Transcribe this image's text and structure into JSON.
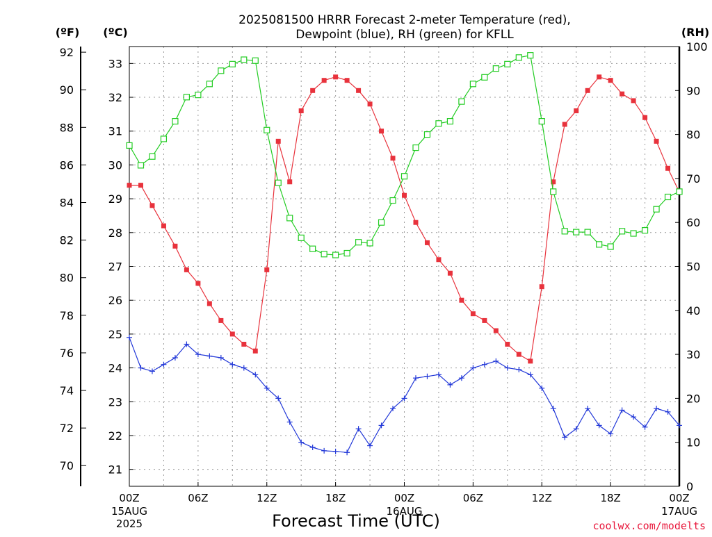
{
  "chart_data": {
    "type": "line",
    "title_line1": "2025081500 HRRR Forecast 2-meter Temperature (red),",
    "title_line2": "Dewpoint (blue), RH (green) for KFLL",
    "left_outer_unit": "(ºF)",
    "left_inner_unit": "(ºC)",
    "right_unit": "(RH)",
    "xlabel": "Forecast Time (UTC)",
    "credit": "coolwx.com/modelts",
    "fahrenheit_ticks": [
      "70",
      "72",
      "74",
      "76",
      "78",
      "80",
      "82",
      "84",
      "86",
      "88",
      "90",
      "92"
    ],
    "celsius_ticks": [
      "21",
      "22",
      "23",
      "24",
      "25",
      "26",
      "27",
      "28",
      "29",
      "30",
      "31",
      "32",
      "33"
    ],
    "rh_ticks": [
      "0",
      "10",
      "20",
      "30",
      "40",
      "50",
      "60",
      "70",
      "80",
      "90",
      "100"
    ],
    "celsius_range": [
      20.5,
      33.5
    ],
    "rh_range": [
      0,
      100
    ],
    "x_range_hours": [
      0,
      48
    ],
    "grid": true,
    "x_ticks": [
      {
        "hour": 0,
        "line1": "00Z",
        "line2": "15AUG",
        "line3": "2025"
      },
      {
        "hour": 6,
        "line1": "06Z",
        "line2": "",
        "line3": ""
      },
      {
        "hour": 12,
        "line1": "12Z",
        "line2": "",
        "line3": ""
      },
      {
        "hour": 18,
        "line1": "18Z",
        "line2": "",
        "line3": ""
      },
      {
        "hour": 24,
        "line1": "00Z",
        "line2": "16AUG",
        "line3": ""
      },
      {
        "hour": 30,
        "line1": "06Z",
        "line2": "",
        "line3": ""
      },
      {
        "hour": 36,
        "line1": "12Z",
        "line2": "",
        "line3": ""
      },
      {
        "hour": 42,
        "line1": "18Z",
        "line2": "",
        "line3": ""
      },
      {
        "hour": 48,
        "line1": "00Z",
        "line2": "17AUG",
        "line3": ""
      }
    ],
    "series": [
      {
        "name": "Temperature (red)",
        "axis": "celsius",
        "color": "#e8323c",
        "marker": "filled-square",
        "values": [
          29.4,
          29.4,
          28.8,
          28.2,
          27.6,
          26.9,
          26.5,
          25.9,
          25.4,
          25.0,
          24.7,
          24.5,
          26.9,
          30.7,
          29.5,
          31.6,
          32.2,
          32.5,
          32.6,
          32.5,
          32.2,
          31.8,
          31.0,
          30.2,
          29.1,
          28.3,
          27.7,
          27.2,
          26.8,
          26.0,
          25.6,
          25.4,
          25.1,
          24.7,
          24.4,
          24.2,
          26.4,
          29.5,
          31.2,
          31.6,
          32.2,
          32.6,
          32.5,
          32.1,
          31.9,
          31.4,
          30.7,
          29.9,
          29.2
        ]
      },
      {
        "name": "Dewpoint (blue)",
        "axis": "celsius",
        "color": "#2238d8",
        "marker": "plus",
        "values": [
          24.9,
          24.0,
          23.9,
          24.1,
          24.3,
          24.7,
          24.4,
          24.35,
          24.3,
          24.1,
          24.0,
          23.8,
          23.4,
          23.1,
          22.4,
          21.8,
          21.65,
          21.55,
          21.53,
          21.5,
          22.2,
          21.7,
          22.3,
          22.8,
          23.1,
          23.7,
          23.75,
          23.8,
          23.5,
          23.7,
          24.0,
          24.1,
          24.2,
          24.0,
          23.95,
          23.8,
          23.4,
          22.8,
          21.95,
          22.2,
          22.8,
          22.3,
          22.05,
          22.75,
          22.55,
          22.25,
          22.8,
          22.7,
          22.3
        ]
      },
      {
        "name": "RH (green)",
        "axis": "rh",
        "color": "#22cc22",
        "marker": "open-square",
        "values": [
          77.5,
          73.0,
          75.0,
          79.0,
          83.0,
          88.5,
          89.0,
          91.5,
          94.5,
          96.0,
          97.0,
          96.8,
          81.0,
          69.0,
          61.0,
          56.5,
          54.0,
          52.8,
          52.6,
          53.0,
          55.5,
          55.3,
          60.0,
          65.0,
          70.5,
          77.0,
          80.0,
          82.5,
          83.0,
          87.5,
          91.5,
          93.0,
          95.0,
          96.0,
          97.5,
          98.0,
          83.0,
          67.0,
          58.0,
          57.8,
          57.8,
          55.0,
          54.5,
          58.0,
          57.5,
          58.2,
          63.0,
          65.8,
          67.0
        ]
      }
    ]
  }
}
